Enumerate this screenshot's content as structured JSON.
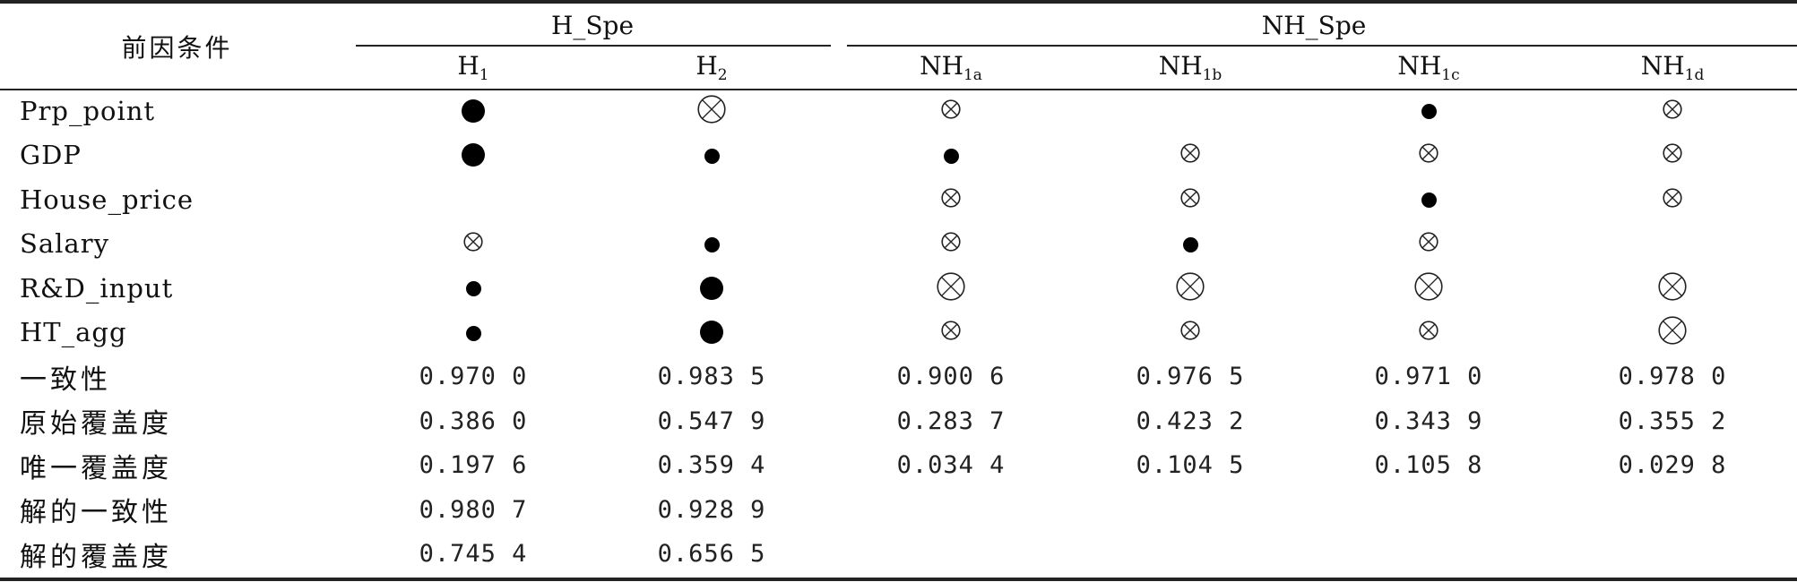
{
  "table": {
    "corner_header": "前因条件",
    "groups": [
      {
        "label": "H_Spe"
      },
      {
        "label": "NH_Spe"
      }
    ],
    "columns": [
      {
        "base": "H",
        "sub": "1"
      },
      {
        "base": "H",
        "sub": "2"
      },
      {
        "base": "NH",
        "sub": "1a"
      },
      {
        "base": "NH",
        "sub": "1b"
      },
      {
        "base": "NH",
        "sub": "1c"
      },
      {
        "base": "NH",
        "sub": "1d"
      }
    ],
    "legend_symbols": {
      "core_present": "large-filled-circle",
      "peripheral_present": "small-filled-circle",
      "core_absent": "large-crossed-circle",
      "peripheral_absent": "small-crossed-circle",
      "blank": "none"
    },
    "condition_rows": [
      {
        "label": "Prp_point",
        "cells": [
          "core_present",
          "core_absent",
          "peripheral_absent",
          "blank",
          "peripheral_present",
          "peripheral_absent"
        ]
      },
      {
        "label": "GDP",
        "cells": [
          "core_present",
          "peripheral_present",
          "peripheral_present",
          "peripheral_absent",
          "peripheral_absent",
          "peripheral_absent"
        ]
      },
      {
        "label": "House_price",
        "cells": [
          "blank",
          "blank",
          "peripheral_absent",
          "peripheral_absent",
          "peripheral_present",
          "peripheral_absent"
        ]
      },
      {
        "label": "Salary",
        "cells": [
          "peripheral_absent",
          "peripheral_present",
          "peripheral_absent",
          "peripheral_present",
          "peripheral_absent",
          "blank"
        ]
      },
      {
        "label": "R&D_input",
        "cells": [
          "peripheral_present",
          "core_present",
          "core_absent",
          "core_absent",
          "core_absent",
          "core_absent"
        ]
      },
      {
        "label": "HT_agg",
        "cells": [
          "peripheral_present",
          "core_present",
          "peripheral_absent",
          "peripheral_absent",
          "peripheral_absent",
          "core_absent"
        ]
      }
    ],
    "metric_rows": [
      {
        "label": "一致性",
        "values": [
          "0.970 0",
          "0.983 5",
          "0.900 6",
          "0.976 5",
          "0.971 0",
          "0.978 0"
        ]
      },
      {
        "label": "原始覆盖度",
        "values": [
          "0.386 0",
          "0.547 9",
          "0.283 7",
          "0.423 2",
          "0.343 9",
          "0.355 2"
        ]
      },
      {
        "label": "唯一覆盖度",
        "values": [
          "0.197 6",
          "0.359 4",
          "0.034 4",
          "0.104 5",
          "0.105 8",
          "0.029 8"
        ]
      },
      {
        "label": "解的一致性",
        "values": [
          "0.980 7",
          "0.928 9",
          "",
          "",
          "",
          ""
        ]
      },
      {
        "label": "解的覆盖度",
        "values": [
          "0.745 4",
          "0.656 5",
          "",
          "",
          "",
          ""
        ]
      }
    ]
  }
}
